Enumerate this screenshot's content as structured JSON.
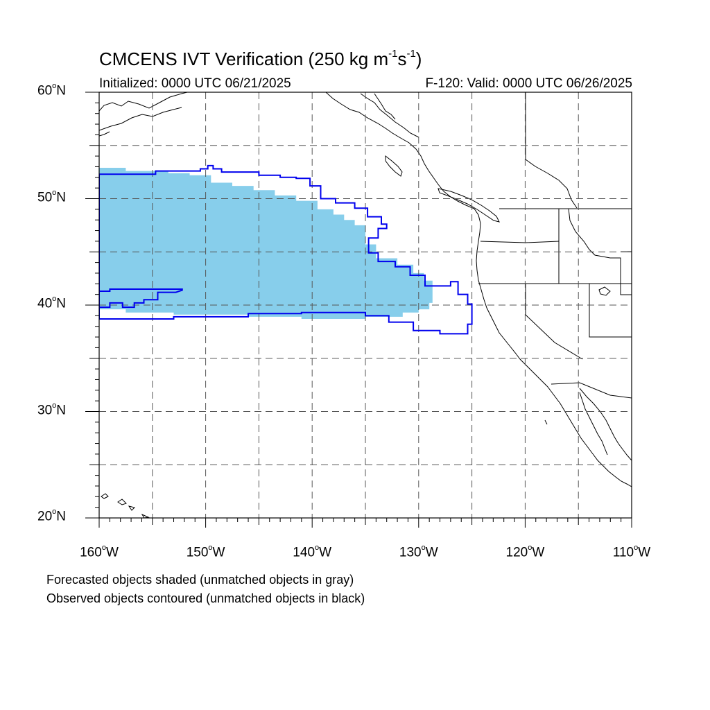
{
  "title": {
    "prefix": "CMCENS IVT Verification (250 kg m",
    "exp1": "-1",
    "mid": "s",
    "exp2": "-1",
    "suffix": ")"
  },
  "subtitle_left": "Initialized: 0000 UTC 06/21/2025",
  "subtitle_right": "F-120: Valid: 0000 UTC 06/26/2025",
  "map": {
    "lon_range": [
      -160,
      -110
    ],
    "lat_range": [
      20,
      60
    ],
    "grid": "dashed, every 5 degrees",
    "lat_labels": [
      {
        "value": 60,
        "num": "60",
        "deg": "o",
        "hemi": "N"
      },
      {
        "value": 50,
        "num": "50",
        "deg": "o",
        "hemi": "N"
      },
      {
        "value": 40,
        "num": "40",
        "deg": "o",
        "hemi": "N"
      },
      {
        "value": 30,
        "num": "30",
        "deg": "o",
        "hemi": "N"
      },
      {
        "value": 20,
        "num": "20",
        "deg": "o",
        "hemi": "N"
      }
    ],
    "lon_labels": [
      {
        "value": -160,
        "num": "160",
        "deg": "o",
        "hemi": "W"
      },
      {
        "value": -150,
        "num": "150",
        "deg": "o",
        "hemi": "W"
      },
      {
        "value": -140,
        "num": "140",
        "deg": "o",
        "hemi": "W"
      },
      {
        "value": -130,
        "num": "130",
        "deg": "o",
        "hemi": "W"
      },
      {
        "value": -120,
        "num": "120",
        "deg": "o",
        "hemi": "W"
      },
      {
        "value": -110,
        "num": "110",
        "deg": "o",
        "hemi": "W"
      }
    ],
    "colors": {
      "forecast_fill": "#87ceeb",
      "observed_contour": "#0000ee",
      "coastline": "#000000",
      "grid": "#555555"
    },
    "forecast_object_lonlat": [
      [
        -160,
        52.9
      ],
      [
        -157.5,
        52.9
      ],
      [
        -157.5,
        52.6
      ],
      [
        -153.5,
        52.6
      ],
      [
        -153.5,
        52.4
      ],
      [
        -151.5,
        52.4
      ],
      [
        -151.5,
        52.2
      ],
      [
        -149.5,
        52.2
      ],
      [
        -149.5,
        51.5
      ],
      [
        -147.5,
        51.5
      ],
      [
        -147.5,
        51.2
      ],
      [
        -145.5,
        51.2
      ],
      [
        -145.5,
        50.8
      ],
      [
        -143.5,
        50.8
      ],
      [
        -143.5,
        50.3
      ],
      [
        -141.5,
        50.3
      ],
      [
        -141.5,
        49.8
      ],
      [
        -139.5,
        49.8
      ],
      [
        -139.5,
        49.0
      ],
      [
        -138.0,
        49.0
      ],
      [
        -138.0,
        48.5
      ],
      [
        -137.0,
        48.5
      ],
      [
        -137.0,
        48.0
      ],
      [
        -136.0,
        48.0
      ],
      [
        -136.0,
        47.5
      ],
      [
        -135.0,
        47.5
      ],
      [
        -135.0,
        45.7
      ],
      [
        -134.0,
        45.7
      ],
      [
        -134.0,
        44.4
      ],
      [
        -132.0,
        44.4
      ],
      [
        -132.0,
        43.8
      ],
      [
        -130.5,
        43.8
      ],
      [
        -130.5,
        43.0
      ],
      [
        -129.5,
        43.0
      ],
      [
        -129.5,
        42.3
      ],
      [
        -128.7,
        42.3
      ],
      [
        -128.7,
        40.2
      ],
      [
        -129.0,
        40.2
      ],
      [
        -129.0,
        39.6
      ],
      [
        -130.0,
        39.6
      ],
      [
        -130.0,
        39.3
      ],
      [
        -131.5,
        39.3
      ],
      [
        -131.5,
        38.9
      ],
      [
        -135.0,
        38.9
      ],
      [
        -135.0,
        38.7
      ],
      [
        -141.0,
        38.7
      ],
      [
        -141.0,
        38.9
      ],
      [
        -146.0,
        38.9
      ],
      [
        -146.0,
        39.1
      ],
      [
        -153.0,
        39.1
      ],
      [
        -153.0,
        39.3
      ],
      [
        -157.5,
        39.3
      ],
      [
        -157.5,
        39.6
      ],
      [
        -160,
        39.6
      ]
    ],
    "observed_object_lonlat": [
      [
        -160,
        52.3
      ],
      [
        -154.7,
        52.3
      ],
      [
        -154.7,
        52.6
      ],
      [
        -150.5,
        52.6
      ],
      [
        -150.5,
        52.8
      ],
      [
        -149.8,
        52.8
      ],
      [
        -149.8,
        53.1
      ],
      [
        -149.3,
        53.1
      ],
      [
        -149.3,
        52.8
      ],
      [
        -148.5,
        52.8
      ],
      [
        -148.5,
        52.5
      ],
      [
        -145.0,
        52.5
      ],
      [
        -145.0,
        52.2
      ],
      [
        -143.0,
        52.2
      ],
      [
        -143.0,
        52.0
      ],
      [
        -141.5,
        52.0
      ],
      [
        -141.5,
        51.9
      ],
      [
        -140.2,
        51.9
      ],
      [
        -140.2,
        51.2
      ],
      [
        -139.2,
        51.2
      ],
      [
        -139.2,
        50.0
      ],
      [
        -137.8,
        50.0
      ],
      [
        -137.8,
        49.6
      ],
      [
        -136.0,
        49.6
      ],
      [
        -136.0,
        49.1
      ],
      [
        -134.8,
        49.1
      ],
      [
        -134.8,
        48.3
      ],
      [
        -133.5,
        48.3
      ],
      [
        -133.5,
        47.6
      ],
      [
        -133.0,
        47.6
      ],
      [
        -133.0,
        47.2
      ],
      [
        -133.8,
        47.2
      ],
      [
        -133.8,
        46.3
      ],
      [
        -134.7,
        46.3
      ],
      [
        -134.7,
        44.9
      ],
      [
        -133.8,
        44.9
      ],
      [
        -133.8,
        44.1
      ],
      [
        -132.2,
        44.1
      ],
      [
        -132.2,
        43.6
      ],
      [
        -130.8,
        43.6
      ],
      [
        -130.8,
        42.8
      ],
      [
        -129.4,
        42.8
      ],
      [
        -129.4,
        41.8
      ],
      [
        -127.0,
        41.8
      ],
      [
        -127.0,
        42.2
      ],
      [
        -126.3,
        42.2
      ],
      [
        -126.3,
        41.0
      ],
      [
        -125.4,
        41.0
      ],
      [
        -125.4,
        40.1
      ],
      [
        -125.0,
        40.1
      ],
      [
        -125.0,
        38.2
      ],
      [
        -125.4,
        38.2
      ],
      [
        -125.4,
        37.3
      ],
      [
        -128.0,
        37.3
      ],
      [
        -128.0,
        37.6
      ],
      [
        -130.5,
        37.6
      ],
      [
        -130.5,
        38.4
      ],
      [
        -132.8,
        38.4
      ],
      [
        -132.8,
        39.0
      ],
      [
        -135.0,
        39.0
      ],
      [
        -135.0,
        39.3
      ],
      [
        -141.0,
        39.3
      ],
      [
        -141.0,
        39.2
      ],
      [
        -146.0,
        39.2
      ],
      [
        -146.0,
        38.9
      ],
      [
        -153.0,
        38.9
      ],
      [
        -153.0,
        38.7
      ],
      [
        -160,
        38.7
      ]
    ],
    "observed_object2_lonlat": [
      [
        -160,
        41.3
      ],
      [
        -159.0,
        41.3
      ],
      [
        -159.0,
        41.5
      ],
      [
        -152.2,
        41.5
      ],
      [
        -152.2,
        41.4
      ],
      [
        -152.8,
        41.2
      ],
      [
        -154.5,
        41.2
      ],
      [
        -154.5,
        40.5
      ],
      [
        -155.8,
        40.5
      ],
      [
        -155.8,
        40.2
      ],
      [
        -156.7,
        40.2
      ],
      [
        -156.7,
        39.8
      ],
      [
        -157.8,
        39.8
      ],
      [
        -157.8,
        40.2
      ],
      [
        -159.0,
        40.2
      ],
      [
        -159.0,
        39.8
      ],
      [
        -160,
        39.8
      ]
    ]
  },
  "footnotes": [
    "Forecasted objects shaded (unmatched objects in gray)",
    "Observed objects contoured (unmatched objects in black)"
  ]
}
